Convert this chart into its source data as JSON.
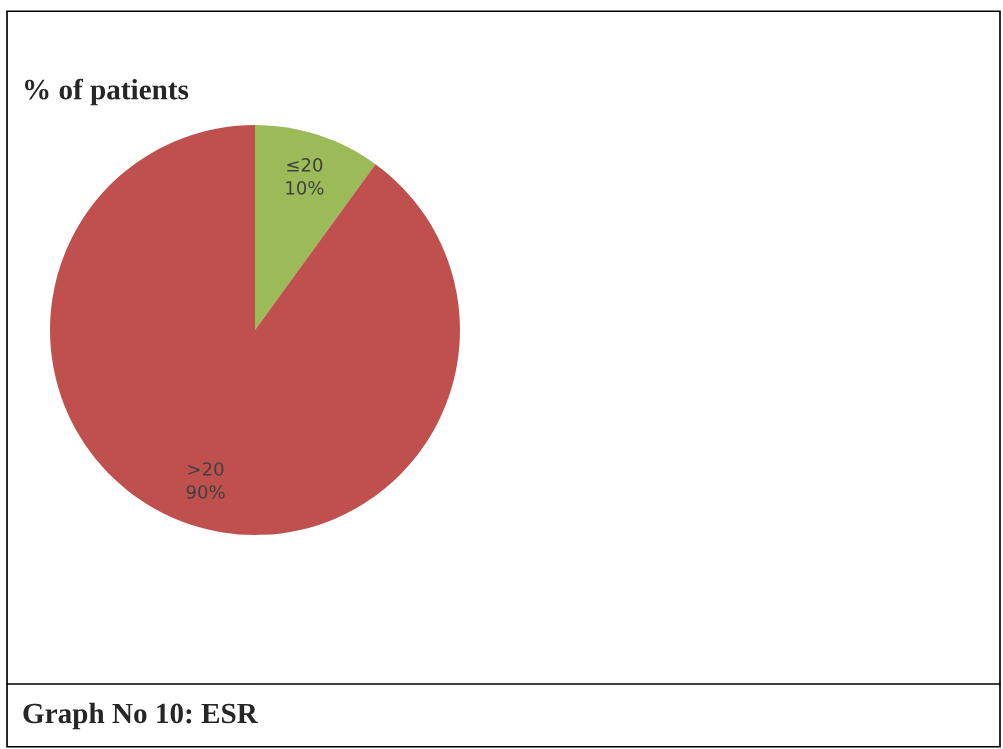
{
  "chart_data": {
    "type": "pie",
    "title": "% of patients",
    "categories": [
      "≤20",
      ">20"
    ],
    "values": [
      10,
      90
    ],
    "value_labels": [
      "10%",
      "90%"
    ],
    "colors": [
      "#9bbb59",
      "#c0504d"
    ],
    "legend": false,
    "annotations": [
      "Graph No 10: ESR"
    ]
  }
}
